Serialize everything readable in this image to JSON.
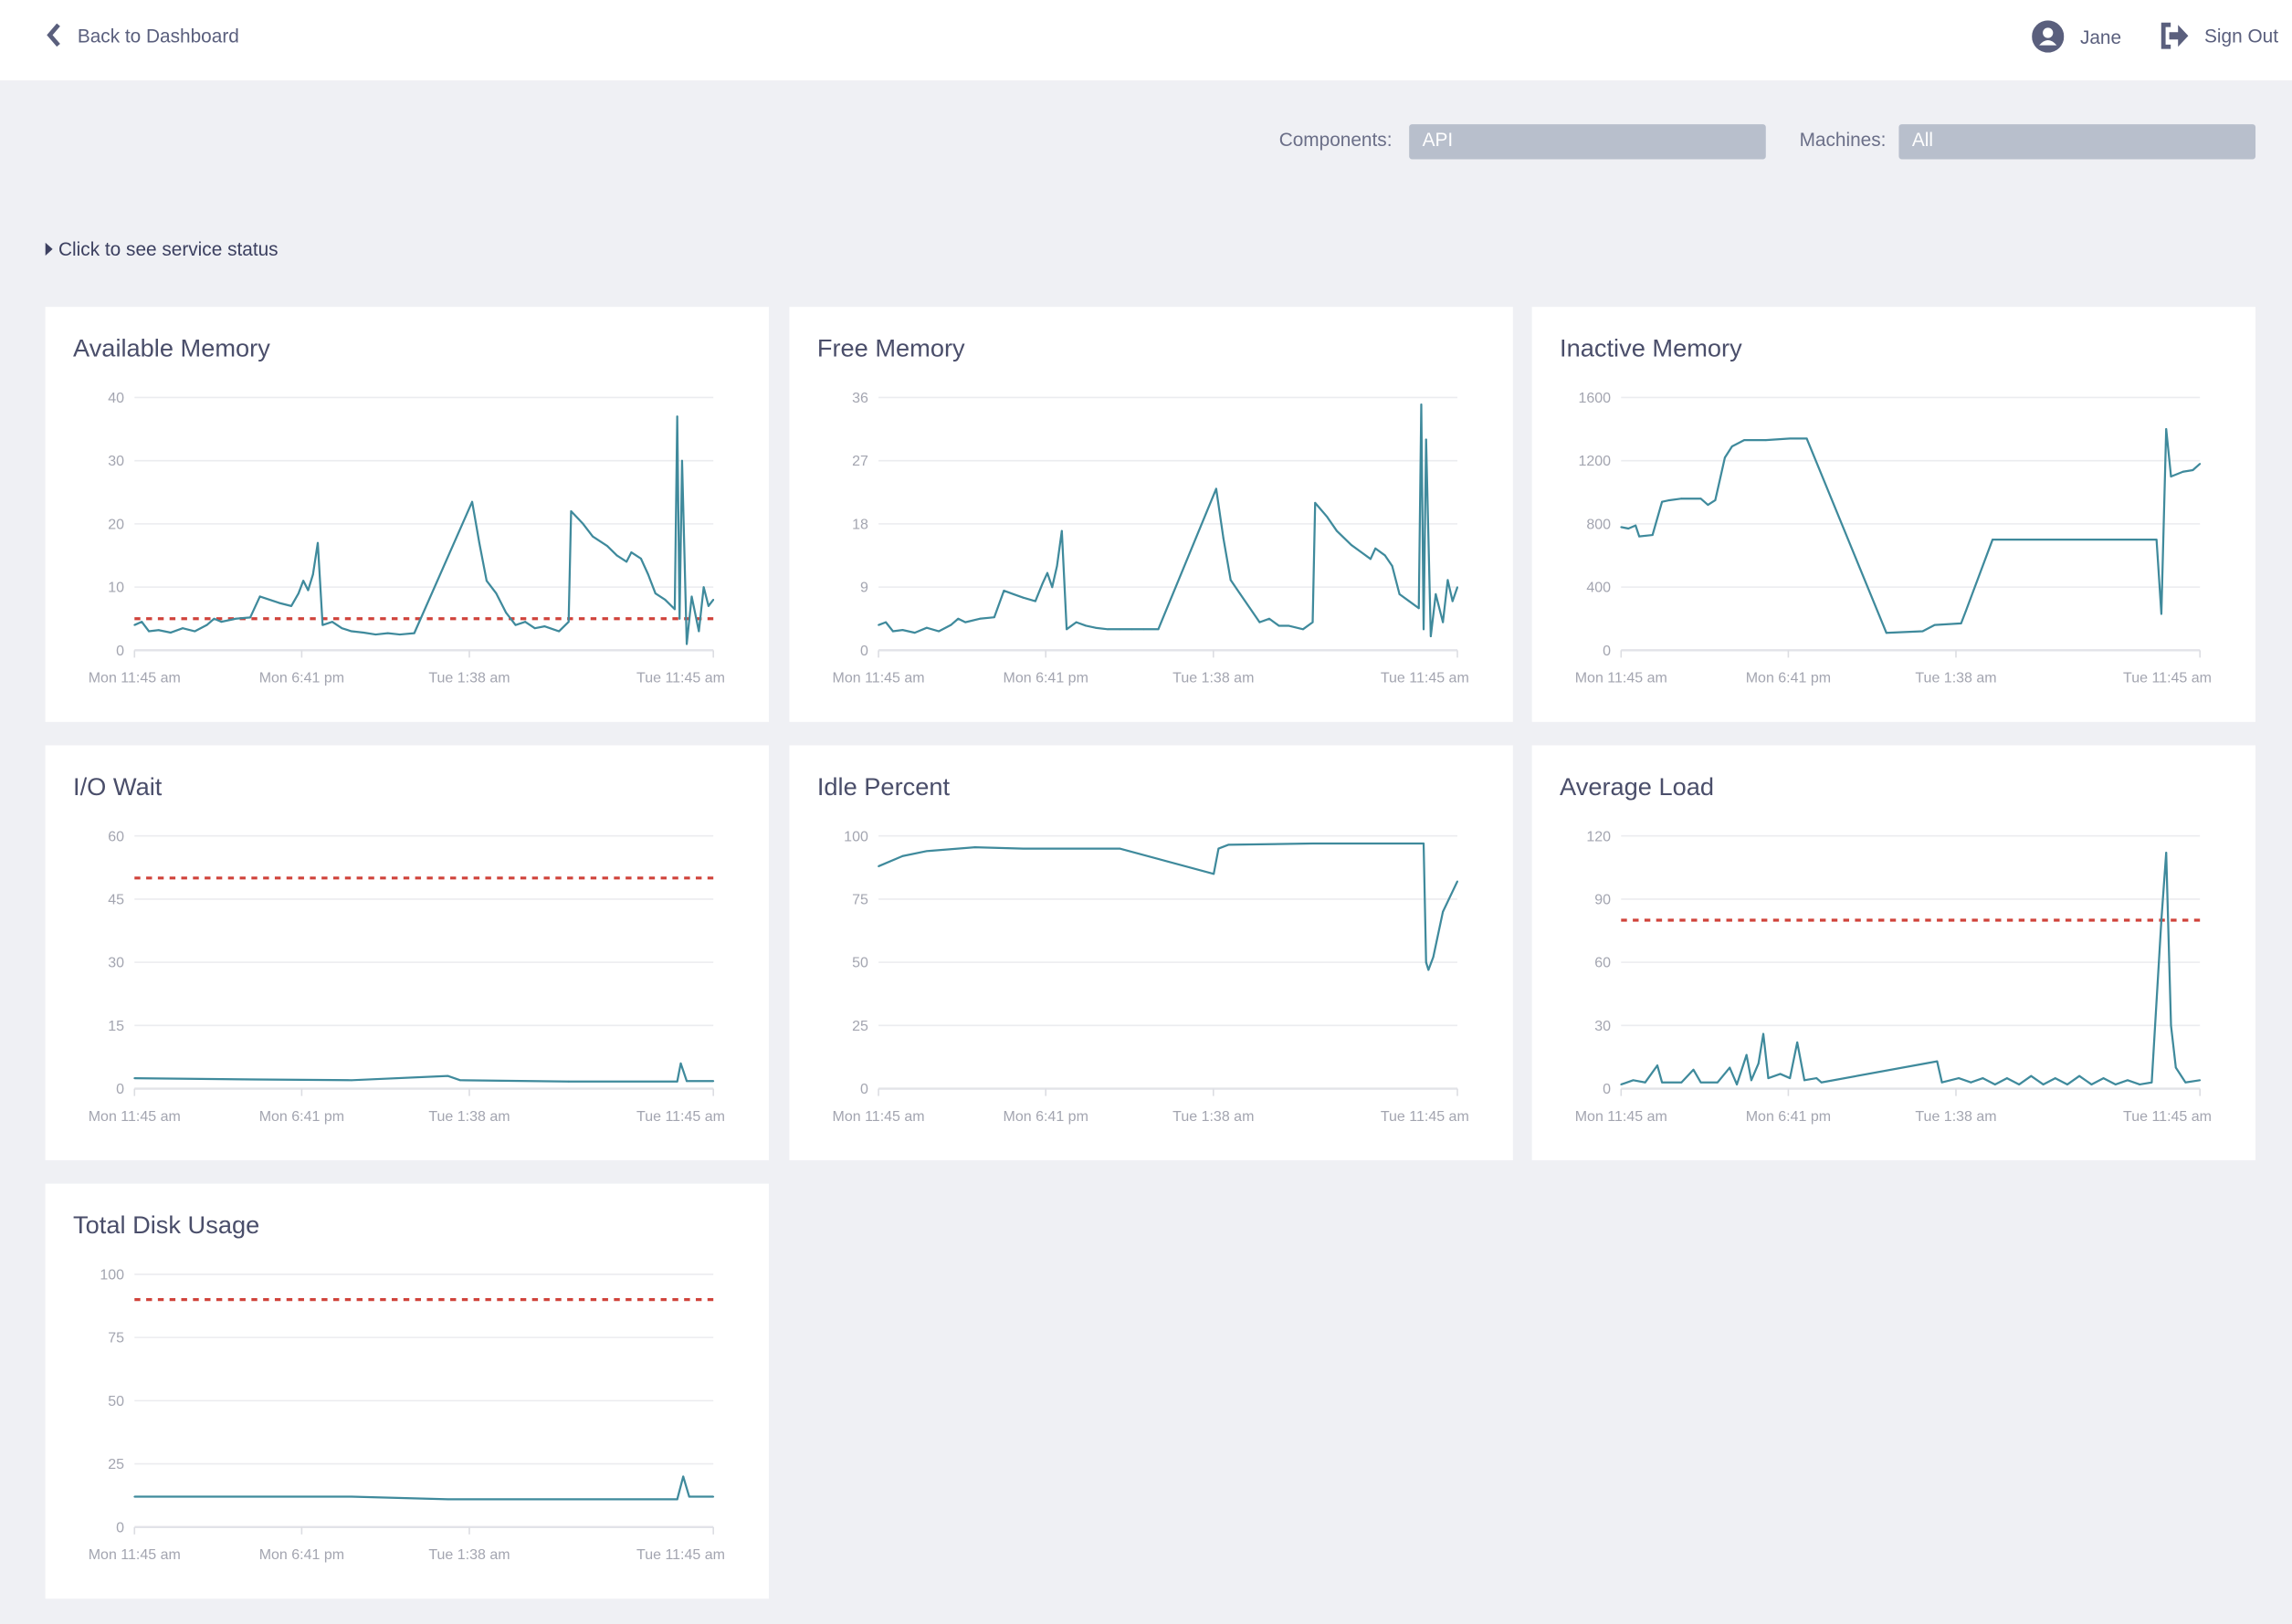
{
  "header": {
    "back_label": "Back to Dashboard",
    "back_icon": "chevron-left-icon",
    "user_name": "Jane",
    "user_icon": "user-circle-icon",
    "signout_label": "Sign Out",
    "signout_icon": "sign-out-icon"
  },
  "filters": {
    "components_label": "Components:",
    "components_value": "API",
    "machines_label": "Machines:",
    "machines_value": "All"
  },
  "service_status": {
    "label": "Click to see service status",
    "icon": "caret-right-icon"
  },
  "colors": {
    "line": "#3f8a9c",
    "threshold": "#d0433b",
    "grid": "#ebecef",
    "axis_text": "#a3a5b0"
  },
  "chart_data": [
    {
      "type": "line",
      "title": "Available Memory",
      "ylim": [
        0,
        40
      ],
      "yticks": [
        "0",
        "10",
        "20",
        "30",
        "40"
      ],
      "xticks": [
        "Mon 11:45 am",
        "Mon 6:41 pm",
        "Tue 1:38 am",
        "Tue 11:45 am"
      ],
      "threshold": 5,
      "points": [
        [
          "Mon 11:45",
          4
        ],
        [
          "Mon 12:03",
          4.5
        ],
        [
          "Mon 12:21",
          3
        ],
        [
          "Mon 12:45",
          3.2
        ],
        [
          "Mon 13:15",
          2.8
        ],
        [
          "Mon 13:45",
          3.5
        ],
        [
          "Mon 14:15",
          3
        ],
        [
          "Mon 14:45",
          4
        ],
        [
          "Mon 15:03",
          5
        ],
        [
          "Mon 15:21",
          4.5
        ],
        [
          "Mon 15:57",
          5
        ],
        [
          "Mon 16:33",
          5.2
        ],
        [
          "Mon 16:57",
          8.5
        ],
        [
          "Mon 17:21",
          8
        ],
        [
          "Mon 17:45",
          7.5
        ],
        [
          "Mon 18:15",
          7
        ],
        [
          "Mon 18:33",
          9
        ],
        [
          "Mon 18:45",
          11
        ],
        [
          "Mon 18:57",
          9.5
        ],
        [
          "Mon 19:09",
          12
        ],
        [
          "Mon 19:21",
          17
        ],
        [
          "Mon 19:33",
          4
        ],
        [
          "Mon 19:57",
          4.5
        ],
        [
          "Mon 20:21",
          3.5
        ],
        [
          "Mon 20:45",
          3
        ],
        [
          "Mon 21:15",
          2.8
        ],
        [
          "Mon 21:45",
          2.5
        ],
        [
          "Mon 22:15",
          2.7
        ],
        [
          "Mon 22:45",
          2.5
        ],
        [
          "Mon 23:21",
          2.7
        ],
        [
          "Tue 01:45",
          23.5
        ],
        [
          "Tue 02:03",
          17
        ],
        [
          "Tue 02:21",
          11
        ],
        [
          "Tue 02:45",
          9
        ],
        [
          "Tue 03:09",
          6
        ],
        [
          "Tue 03:33",
          4
        ],
        [
          "Tue 03:57",
          4.5
        ],
        [
          "Tue 04:21",
          3.5
        ],
        [
          "Tue 04:45",
          3.8
        ],
        [
          "Tue 05:21",
          3
        ],
        [
          "Tue 05:45",
          4.5
        ],
        [
          "Tue 05:51",
          22
        ],
        [
          "Tue 06:21",
          20
        ],
        [
          "Tue 06:45",
          18
        ],
        [
          "Tue 07:21",
          16.5
        ],
        [
          "Tue 07:45",
          15
        ],
        [
          "Tue 08:09",
          14
        ],
        [
          "Tue 08:21",
          15.5
        ],
        [
          "Tue 08:45",
          14.5
        ],
        [
          "Tue 09:03",
          12
        ],
        [
          "Tue 09:21",
          9
        ],
        [
          "Tue 09:45",
          8
        ],
        [
          "Tue 10:09",
          6.5
        ],
        [
          "Tue 10:15",
          37
        ],
        [
          "Tue 10:21",
          5
        ],
        [
          "Tue 10:27",
          30
        ],
        [
          "Tue 10:39",
          1
        ],
        [
          "Tue 10:51",
          8.5
        ],
        [
          "Tue 11:09",
          3
        ],
        [
          "Tue 11:21",
          10
        ],
        [
          "Tue 11:33",
          7
        ],
        [
          "Tue 11:45",
          8
        ]
      ]
    },
    {
      "type": "line",
      "title": "Free Memory",
      "ylim": [
        0,
        36
      ],
      "yticks": [
        "0",
        "9",
        "18",
        "27",
        "36"
      ],
      "xticks": [
        "Mon 11:45 am",
        "Mon 6:41 pm",
        "Tue 1:38 am",
        "Tue 11:45 am"
      ],
      "points": [
        [
          "Mon 11:45",
          3.6
        ],
        [
          "Mon 12:03",
          4
        ],
        [
          "Mon 12:21",
          2.7
        ],
        [
          "Mon 12:45",
          2.9
        ],
        [
          "Mon 13:15",
          2.5
        ],
        [
          "Mon 13:45",
          3.2
        ],
        [
          "Mon 14:15",
          2.7
        ],
        [
          "Mon 14:45",
          3.6
        ],
        [
          "Mon 15:03",
          4.5
        ],
        [
          "Mon 15:21",
          4
        ],
        [
          "Mon 15:57",
          4.5
        ],
        [
          "Mon 16:33",
          4.7
        ],
        [
          "Mon 16:57",
          8.5
        ],
        [
          "Mon 17:21",
          8
        ],
        [
          "Mon 17:45",
          7.5
        ],
        [
          "Mon 18:15",
          7
        ],
        [
          "Mon 18:33",
          9.5
        ],
        [
          "Mon 18:45",
          11
        ],
        [
          "Mon 18:57",
          9
        ],
        [
          "Mon 19:09",
          12
        ],
        [
          "Mon 19:21",
          17
        ],
        [
          "Mon 19:33",
          3
        ],
        [
          "Mon 19:57",
          4
        ],
        [
          "Mon 20:21",
          3.5
        ],
        [
          "Mon 20:45",
          3.2
        ],
        [
          "Mon 21:15",
          3
        ],
        [
          "Mon 21:45",
          3
        ],
        [
          "Mon 22:15",
          3
        ],
        [
          "Mon 22:45",
          3
        ],
        [
          "Mon 23:21",
          3
        ],
        [
          "Tue 01:45",
          23
        ],
        [
          "Tue 02:03",
          16
        ],
        [
          "Tue 02:21",
          10
        ],
        [
          "Tue 02:45",
          8
        ],
        [
          "Tue 03:09",
          6
        ],
        [
          "Tue 03:33",
          4
        ],
        [
          "Tue 03:57",
          4.5
        ],
        [
          "Tue 04:21",
          3.5
        ],
        [
          "Tue 04:45",
          3.5
        ],
        [
          "Tue 05:21",
          3
        ],
        [
          "Tue 05:45",
          4
        ],
        [
          "Tue 05:51",
          21
        ],
        [
          "Tue 06:21",
          19
        ],
        [
          "Tue 06:45",
          17
        ],
        [
          "Tue 07:21",
          15
        ],
        [
          "Tue 07:45",
          14
        ],
        [
          "Tue 08:09",
          13
        ],
        [
          "Tue 08:21",
          14.5
        ],
        [
          "Tue 08:45",
          13.5
        ],
        [
          "Tue 09:03",
          12
        ],
        [
          "Tue 09:21",
          8
        ],
        [
          "Tue 09:45",
          7
        ],
        [
          "Tue 10:09",
          6
        ],
        [
          "Tue 10:15",
          35
        ],
        [
          "Tue 10:21",
          3
        ],
        [
          "Tue 10:27",
          30
        ],
        [
          "Tue 10:39",
          2
        ],
        [
          "Tue 10:51",
          8
        ],
        [
          "Tue 11:09",
          4
        ],
        [
          "Tue 11:21",
          10
        ],
        [
          "Tue 11:33",
          7
        ],
        [
          "Tue 11:45",
          9
        ]
      ]
    },
    {
      "type": "line",
      "title": "Inactive Memory",
      "ylim": [
        0,
        1600
      ],
      "yticks": [
        "0",
        "400",
        "800",
        "1200",
        "1600"
      ],
      "xticks": [
        "Mon 11:45 am",
        "Mon 6:41 pm",
        "Tue 1:38 am",
        "Tue 11:45 am"
      ],
      "points": [
        [
          "Mon 11:45",
          780
        ],
        [
          "Mon 12:03",
          770
        ],
        [
          "Mon 12:21",
          790
        ],
        [
          "Mon 12:30",
          720
        ],
        [
          "Mon 13:03",
          730
        ],
        [
          "Mon 13:27",
          940
        ],
        [
          "Mon 13:45",
          950
        ],
        [
          "Mon 14:15",
          960
        ],
        [
          "Mon 15:03",
          960
        ],
        [
          "Mon 15:21",
          920
        ],
        [
          "Mon 15:39",
          950
        ],
        [
          "Mon 15:51",
          1080
        ],
        [
          "Mon 16:03",
          1220
        ],
        [
          "Mon 16:21",
          1290
        ],
        [
          "Mon 16:51",
          1330
        ],
        [
          "Mon 17:45",
          1330
        ],
        [
          "Mon 18:45",
          1340
        ],
        [
          "Mon 19:27",
          1340
        ],
        [
          "Mon 22:45",
          110
        ],
        [
          "Tue 00:15",
          120
        ],
        [
          "Tue 00:45",
          160
        ],
        [
          "Tue 01:51",
          170
        ],
        [
          "Tue 02:03",
          250
        ],
        [
          "Tue 03:09",
          700
        ],
        [
          "Tue 09:57",
          700
        ],
        [
          "Tue 10:09",
          230
        ],
        [
          "Tue 10:21",
          1400
        ],
        [
          "Tue 10:33",
          1100
        ],
        [
          "Tue 11:03",
          1130
        ],
        [
          "Tue 11:27",
          1140
        ],
        [
          "Tue 11:45",
          1180
        ]
      ]
    },
    {
      "type": "line",
      "title": "I/O Wait",
      "ylim": [
        0,
        60
      ],
      "yticks": [
        "0",
        "15",
        "30",
        "45",
        "60"
      ],
      "xticks": [
        "Mon 11:45 am",
        "Mon 6:41 pm",
        "Tue 1:38 am",
        "Tue 11:45 am"
      ],
      "threshold": 50,
      "points": [
        [
          "Mon 11:45",
          2.5
        ],
        [
          "Mon 16:45",
          2.2
        ],
        [
          "Mon 20:45",
          2
        ],
        [
          "Tue 00:45",
          3
        ],
        [
          "Tue 01:15",
          2
        ],
        [
          "Tue 05:45",
          1.7
        ],
        [
          "Tue 10:15",
          1.7
        ],
        [
          "Tue 10:24",
          6
        ],
        [
          "Tue 10:39",
          1.8
        ],
        [
          "Tue 11:45",
          1.8
        ]
      ]
    },
    {
      "type": "line",
      "title": "Idle Percent",
      "ylim": [
        0,
        100
      ],
      "yticks": [
        "0",
        "25",
        "50",
        "75",
        "100"
      ],
      "xticks": [
        "Mon 11:45 am",
        "Mon 6:41 pm",
        "Tue 1:38 am",
        "Tue 11:45 am"
      ],
      "points": [
        [
          "Mon 11:45",
          88
        ],
        [
          "Mon 12:45",
          92
        ],
        [
          "Mon 13:45",
          94
        ],
        [
          "Mon 15:45",
          95.5
        ],
        [
          "Mon 17:45",
          95
        ],
        [
          "Mon 21:45",
          95
        ],
        [
          "Tue 01:39",
          85
        ],
        [
          "Tue 01:51",
          95
        ],
        [
          "Tue 02:15",
          96.5
        ],
        [
          "Tue 05:45",
          97
        ],
        [
          "Tue 10:21",
          97
        ],
        [
          "Tue 10:27",
          50
        ],
        [
          "Tue 10:33",
          47
        ],
        [
          "Tue 10:45",
          52
        ],
        [
          "Tue 11:09",
          70
        ],
        [
          "Tue 11:45",
          82
        ]
      ]
    },
    {
      "type": "line",
      "title": "Average Load",
      "ylim": [
        0,
        120
      ],
      "yticks": [
        "0",
        "30",
        "60",
        "90",
        "120"
      ],
      "xticks": [
        "Mon 11:45 am",
        "Mon 6:41 pm",
        "Tue 1:38 am",
        "Tue 11:45 am"
      ],
      "threshold": 80,
      "points": [
        [
          "Mon 11:45",
          2
        ],
        [
          "Mon 12:15",
          4
        ],
        [
          "Mon 12:45",
          3
        ],
        [
          "Mon 13:15",
          11
        ],
        [
          "Mon 13:27",
          3
        ],
        [
          "Mon 14:15",
          3
        ],
        [
          "Mon 14:45",
          9
        ],
        [
          "Mon 15:03",
          3
        ],
        [
          "Mon 15:45",
          3
        ],
        [
          "Mon 16:15",
          10
        ],
        [
          "Mon 16:33",
          2
        ],
        [
          "Mon 16:57",
          16
        ],
        [
          "Mon 17:09",
          4
        ],
        [
          "Mon 17:27",
          12
        ],
        [
          "Mon 17:39",
          26
        ],
        [
          "Mon 17:51",
          5
        ],
        [
          "Mon 18:21",
          7
        ],
        [
          "Mon 18:45",
          5
        ],
        [
          "Mon 19:03",
          22
        ],
        [
          "Mon 19:21",
          4
        ],
        [
          "Mon 19:51",
          5
        ],
        [
          "Mon 20:03",
          3
        ],
        [
          "Tue 00:51",
          13
        ],
        [
          "Tue 01:03",
          3
        ],
        [
          "Tue 01:45",
          5
        ],
        [
          "Tue 02:15",
          3
        ],
        [
          "Tue 02:45",
          5
        ],
        [
          "Tue 03:15",
          2
        ],
        [
          "Tue 03:45",
          5
        ],
        [
          "Tue 04:15",
          2
        ],
        [
          "Tue 04:45",
          6
        ],
        [
          "Tue 05:15",
          2
        ],
        [
          "Tue 05:45",
          5
        ],
        [
          "Tue 06:15",
          2
        ],
        [
          "Tue 06:45",
          6
        ],
        [
          "Tue 07:15",
          2
        ],
        [
          "Tue 07:45",
          5
        ],
        [
          "Tue 08:15",
          2
        ],
        [
          "Tue 08:45",
          4
        ],
        [
          "Tue 09:15",
          2
        ],
        [
          "Tue 09:45",
          3
        ],
        [
          "Tue 10:09",
          80
        ],
        [
          "Tue 10:21",
          112
        ],
        [
          "Tue 10:33",
          30
        ],
        [
          "Tue 10:45",
          10
        ],
        [
          "Tue 11:09",
          3
        ],
        [
          "Tue 11:45",
          4
        ]
      ]
    },
    {
      "type": "line",
      "title": "Total Disk Usage",
      "ylim": [
        0,
        100
      ],
      "yticks": [
        "0",
        "25",
        "50",
        "75",
        "100"
      ],
      "xticks": [
        "Mon 11:45 am",
        "Mon 6:41 pm",
        "Tue 1:38 am",
        "Tue 11:45 am"
      ],
      "threshold": 90,
      "points": [
        [
          "Mon 11:45",
          12
        ],
        [
          "Mon 20:45",
          12
        ],
        [
          "Tue 00:45",
          11
        ],
        [
          "Tue 10:15",
          11
        ],
        [
          "Tue 10:30",
          20
        ],
        [
          "Tue 10:45",
          12
        ],
        [
          "Tue 11:45",
          12
        ]
      ]
    }
  ]
}
